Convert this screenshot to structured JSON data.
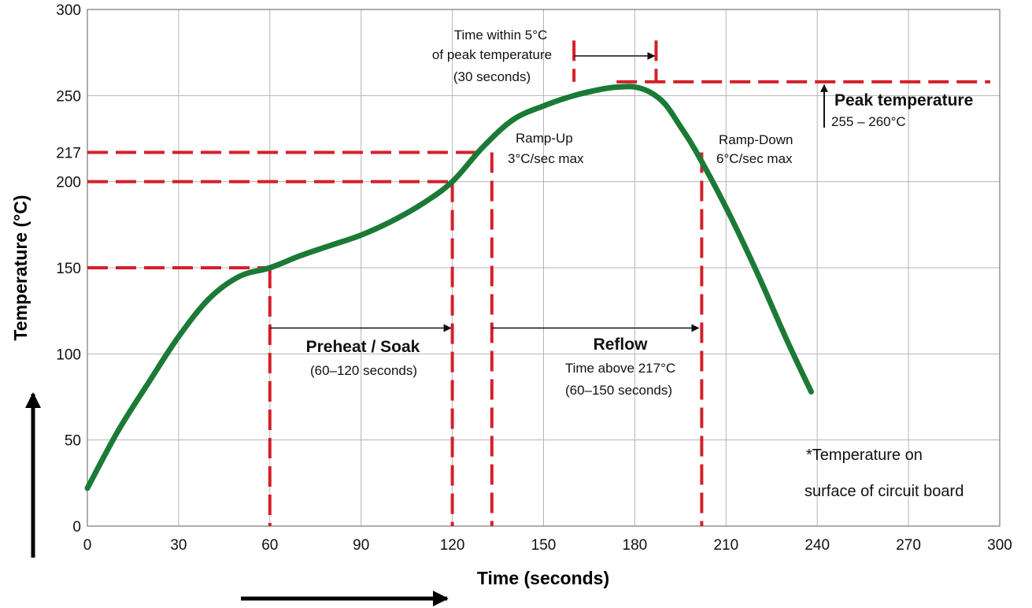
{
  "chart_data": {
    "type": "line",
    "xlabel": "Time (seconds)",
    "ylabel": "Temperature (°C)",
    "xlim": [
      0,
      300
    ],
    "ylim": [
      0,
      300
    ],
    "x_ticks": [
      0,
      30,
      60,
      90,
      120,
      150,
      180,
      210,
      240,
      270,
      300
    ],
    "y_ticks": [
      0,
      50,
      100,
      150,
      200,
      217,
      250,
      300
    ],
    "grid": true,
    "series": [
      {
        "color": "#1a7a36",
        "x": [
          0,
          10,
          20,
          30,
          40,
          50,
          60,
          70,
          80,
          90,
          100,
          110,
          120,
          130,
          140,
          150,
          160,
          170,
          175,
          180,
          185,
          190,
          195,
          200,
          210,
          220,
          230,
          238
        ],
        "y": [
          22,
          55,
          83,
          110,
          132,
          145,
          150,
          157,
          163,
          169,
          177,
          187,
          200,
          220,
          236,
          244,
          250,
          254,
          255,
          255,
          252,
          245,
          232,
          218,
          185,
          148,
          108,
          78
        ]
      }
    ],
    "reference_lines": {
      "horizontal": [
        150,
        200,
        217
      ],
      "peak_band_y": 258,
      "vertical": [
        60,
        120,
        133,
        160,
        187,
        202
      ]
    },
    "spans": [
      {
        "from": 60,
        "to": 120,
        "label": "Preheat / Soak",
        "sublabel": "(60–120 seconds)"
      },
      {
        "from": 133,
        "to": 202,
        "label": "Reflow",
        "sublabel1": "Time above 217°C",
        "sublabel2": "(60–150 seconds)"
      },
      {
        "from": 160,
        "to": 187,
        "line1": "Time within 5°C",
        "line2": "of peak temperature",
        "line3": "(30 seconds)"
      }
    ],
    "annotations": {
      "ramp_up_1": "Ramp-Up",
      "ramp_up_2": "3°C/sec max",
      "ramp_down_1": "Ramp-Down",
      "ramp_down_2": "6°C/sec max",
      "peak_title": "Peak temperature",
      "peak_range": "255 – 260°C",
      "note_1": "*Temperature on",
      "note_2": "surface of circuit board"
    },
    "colors": {
      "curve": "#1a7a36",
      "reference": "#d4202a",
      "grid": "#b5b5b5",
      "text": "#111111"
    }
  }
}
